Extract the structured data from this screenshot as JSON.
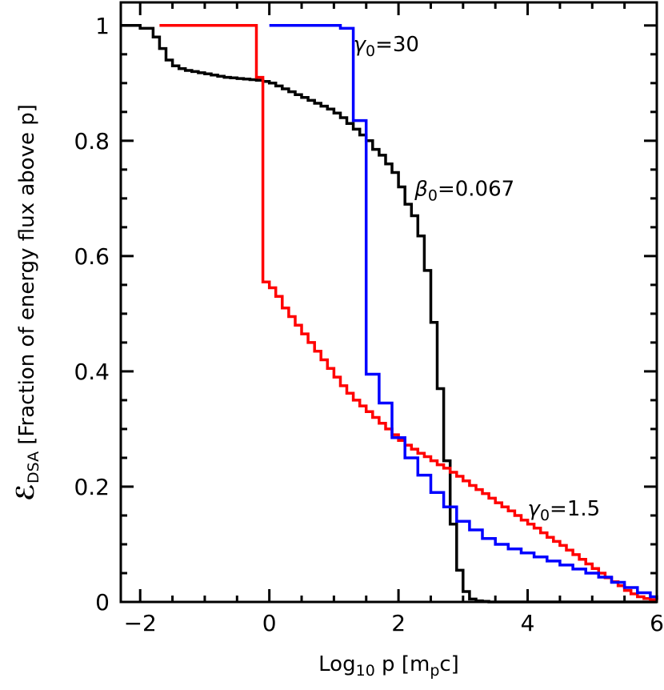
{
  "chart_data": {
    "type": "line",
    "step": true,
    "xlabel_parts": {
      "pre": "Log",
      "sub": "10",
      "mid": " p  [m",
      "sub2": "p",
      "post": "c]"
    },
    "ylabel_parts": {
      "sym": "ℰ",
      "sub": "DSA",
      "post": " [Fraction of energy flux above p]"
    },
    "xlim": [
      -2.3,
      6.0
    ],
    "ylim": [
      0,
      1.04
    ],
    "xticks": [
      -2,
      0,
      2,
      4,
      6
    ],
    "xtick_labels": [
      "−2",
      "0",
      "2",
      "4",
      "6"
    ],
    "yticks": [
      0,
      0.2,
      0.4,
      0.6,
      0.8,
      1.0
    ],
    "ytick_labels": [
      "0",
      "0.2",
      "0.4",
      "0.6",
      "0.8",
      "1"
    ],
    "grid": false,
    "legend": "none",
    "series": [
      {
        "color": "#000000",
        "x": [
          -2.3,
          -2.0,
          -1.8,
          -1.7,
          -1.6,
          -1.5,
          -1.4,
          -1.3,
          -1.2,
          -1.1,
          -1.0,
          -0.9,
          -0.8,
          -0.7,
          -0.6,
          -0.5,
          -0.4,
          -0.3,
          -0.2,
          -0.1,
          0.0,
          0.1,
          0.2,
          0.3,
          0.4,
          0.5,
          0.6,
          0.7,
          0.8,
          0.9,
          1.0,
          1.1,
          1.2,
          1.3,
          1.4,
          1.5,
          1.6,
          1.7,
          1.8,
          1.9,
          2.0,
          2.1,
          2.2,
          2.3,
          2.4,
          2.5,
          2.6,
          2.7,
          2.8,
          2.9,
          3.0,
          3.1,
          3.2,
          3.3,
          3.4,
          6.0
        ],
        "y": [
          1.0,
          0.995,
          0.98,
          0.96,
          0.94,
          0.93,
          0.925,
          0.922,
          0.92,
          0.918,
          0.916,
          0.914,
          0.912,
          0.91,
          0.909,
          0.908,
          0.907,
          0.906,
          0.905,
          0.903,
          0.9,
          0.895,
          0.89,
          0.885,
          0.88,
          0.875,
          0.87,
          0.865,
          0.86,
          0.855,
          0.848,
          0.84,
          0.83,
          0.82,
          0.81,
          0.8,
          0.785,
          0.775,
          0.76,
          0.745,
          0.72,
          0.69,
          0.67,
          0.635,
          0.575,
          0.485,
          0.37,
          0.245,
          0.135,
          0.055,
          0.018,
          0.005,
          0.002,
          0.001,
          0.0,
          0.0
        ]
      },
      {
        "color": "#ff0000",
        "x": [
          -1.7,
          -0.2,
          -0.1,
          0.0,
          0.1,
          0.2,
          0.3,
          0.4,
          0.5,
          0.6,
          0.7,
          0.8,
          0.9,
          1.0,
          1.1,
          1.2,
          1.3,
          1.4,
          1.5,
          1.6,
          1.7,
          1.8,
          1.9,
          2.0,
          2.1,
          2.2,
          2.3,
          2.4,
          2.5,
          2.6,
          2.7,
          2.8,
          2.9,
          3.0,
          3.1,
          3.2,
          3.3,
          3.4,
          3.5,
          3.6,
          3.7,
          3.8,
          3.9,
          4.0,
          4.1,
          4.2,
          4.3,
          4.4,
          4.5,
          4.6,
          4.7,
          4.8,
          4.9,
          5.0,
          5.1,
          5.2,
          5.3,
          5.4,
          5.5,
          5.6,
          5.7,
          5.8,
          5.9,
          6.0
        ],
        "y": [
          1.0,
          0.91,
          0.555,
          0.545,
          0.53,
          0.51,
          0.495,
          0.48,
          0.465,
          0.45,
          0.435,
          0.42,
          0.405,
          0.39,
          0.375,
          0.362,
          0.35,
          0.34,
          0.33,
          0.32,
          0.31,
          0.3,
          0.29,
          0.28,
          0.272,
          0.265,
          0.258,
          0.252,
          0.245,
          0.238,
          0.232,
          0.225,
          0.218,
          0.21,
          0.202,
          0.195,
          0.188,
          0.18,
          0.172,
          0.165,
          0.158,
          0.15,
          0.142,
          0.135,
          0.128,
          0.12,
          0.112,
          0.105,
          0.098,
          0.09,
          0.082,
          0.074,
          0.066,
          0.058,
          0.05,
          0.042,
          0.035,
          0.028,
          0.02,
          0.014,
          0.009,
          0.006,
          0.004,
          0.003
        ]
      },
      {
        "color": "#0000ff",
        "x": [
          -0.0,
          1.1,
          1.3,
          1.5,
          1.7,
          1.9,
          2.1,
          2.3,
          2.5,
          2.7,
          2.9,
          3.1,
          3.3,
          3.5,
          3.7,
          3.9,
          4.1,
          4.3,
          4.5,
          4.7,
          4.9,
          5.1,
          5.3,
          5.5,
          5.7,
          5.9,
          6.0
        ],
        "y": [
          1.0,
          0.995,
          0.835,
          0.395,
          0.345,
          0.285,
          0.25,
          0.22,
          0.19,
          0.165,
          0.14,
          0.125,
          0.11,
          0.1,
          0.092,
          0.085,
          0.078,
          0.071,
          0.064,
          0.057,
          0.05,
          0.043,
          0.034,
          0.025,
          0.016,
          0.009,
          0.005
        ]
      }
    ],
    "annotations": [
      {
        "sym": "γ",
        "sub": "0",
        "text": "=30",
        "x": 1.3,
        "y": 0.955,
        "color": "#000000"
      },
      {
        "sym": "β",
        "sub": "0",
        "text": "=0.067",
        "x": 2.25,
        "y": 0.705,
        "color": "#000000"
      },
      {
        "sym": "γ",
        "sub": "0",
        "text": "=1.5",
        "x": 4.0,
        "y": 0.15,
        "color": "#000000"
      }
    ]
  }
}
